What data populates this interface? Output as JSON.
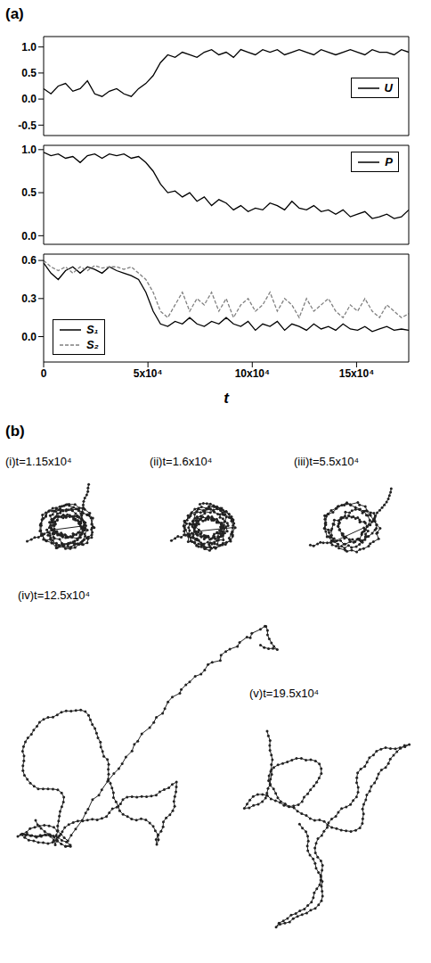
{
  "panels": [
    "(a)",
    "(b)"
  ],
  "chart_data": [
    {
      "type": "line",
      "x": [
        0,
        3500,
        7000,
        10500,
        14000,
        17500,
        21000,
        24500,
        28000,
        31500,
        35000,
        38500,
        42000,
        45500,
        49000,
        52500,
        56000,
        59500,
        63000,
        66500,
        70000,
        73500,
        77000,
        80500,
        84000,
        87500,
        91000,
        94500,
        98000,
        101500,
        105000,
        108500,
        112000,
        115500,
        119000,
        122500,
        126000,
        129500,
        133000,
        136500,
        140000,
        143500,
        147000,
        150500,
        154000,
        157500,
        161000,
        164500,
        168000,
        171500,
        175000
      ],
      "xlim": [
        0,
        175000
      ],
      "xticks": [
        0,
        {
          "value": 50000,
          "label": "5x10⁴"
        },
        {
          "value": 100000,
          "label": "10x10⁴"
        },
        {
          "value": 150000,
          "label": "15x10⁴"
        }
      ],
      "ylim": [
        -0.7,
        1.2
      ],
      "yticks": [
        -0.5,
        {
          "value": 0,
          "label": "0.0"
        },
        0.5,
        {
          "value": 1,
          "label": "1.0"
        }
      ],
      "series": [
        {
          "name": "U",
          "color": "#000000",
          "line_style": "solid",
          "values": [
            0.2,
            0.1,
            0.25,
            0.3,
            0.15,
            0.2,
            0.35,
            0.1,
            0.05,
            0.15,
            0.2,
            0.1,
            0.05,
            0.2,
            0.3,
            0.45,
            0.7,
            0.85,
            0.8,
            0.9,
            0.85,
            0.8,
            0.9,
            0.95,
            0.85,
            0.9,
            0.8,
            0.95,
            0.9,
            0.85,
            0.95,
            0.9,
            0.95,
            0.85,
            0.9,
            0.95,
            0.9,
            0.85,
            0.95,
            0.9,
            0.85,
            0.9,
            0.95,
            0.9,
            0.85,
            0.95,
            0.9,
            0.9,
            0.85,
            0.95,
            0.9
          ]
        }
      ],
      "legend": "right",
      "tick_labels": "y"
    },
    {
      "type": "line",
      "x": [
        0,
        3500,
        7000,
        10500,
        14000,
        17500,
        21000,
        24500,
        28000,
        31500,
        35000,
        38500,
        42000,
        45500,
        49000,
        52500,
        56000,
        59500,
        63000,
        66500,
        70000,
        73500,
        77000,
        80500,
        84000,
        87500,
        91000,
        94500,
        98000,
        101500,
        105000,
        108500,
        112000,
        115500,
        119000,
        122500,
        126000,
        129500,
        133000,
        136500,
        140000,
        143500,
        147000,
        150500,
        154000,
        157500,
        161000,
        164500,
        168000,
        171500,
        175000
      ],
      "xlim": [
        0,
        175000
      ],
      "xticks": [
        0,
        {
          "value": 50000,
          "label": "5x10⁴"
        },
        {
          "value": 100000,
          "label": "10x10⁴"
        },
        {
          "value": 150000,
          "label": "15x10⁴"
        }
      ],
      "ylim": [
        -0.1,
        1.05
      ],
      "yticks": [
        {
          "value": 0,
          "label": "0.0"
        },
        0.5,
        {
          "value": 1,
          "label": "1.0"
        }
      ],
      "series": [
        {
          "name": "P",
          "color": "#000000",
          "line_style": "solid",
          "values": [
            0.97,
            0.93,
            0.95,
            0.9,
            0.92,
            0.85,
            0.93,
            0.95,
            0.9,
            0.95,
            0.93,
            0.95,
            0.9,
            0.92,
            0.85,
            0.75,
            0.6,
            0.5,
            0.52,
            0.45,
            0.5,
            0.4,
            0.45,
            0.35,
            0.42,
            0.38,
            0.3,
            0.35,
            0.28,
            0.32,
            0.3,
            0.38,
            0.35,
            0.3,
            0.4,
            0.32,
            0.3,
            0.35,
            0.28,
            0.3,
            0.25,
            0.3,
            0.22,
            0.25,
            0.28,
            0.2,
            0.22,
            0.25,
            0.2,
            0.22,
            0.3
          ]
        }
      ],
      "legend": "upper right",
      "tick_labels": "y"
    },
    {
      "type": "line",
      "x": [
        0,
        3500,
        7000,
        10500,
        14000,
        17500,
        21000,
        24500,
        28000,
        31500,
        35000,
        38500,
        42000,
        45500,
        49000,
        52500,
        56000,
        59500,
        63000,
        66500,
        70000,
        73500,
        77000,
        80500,
        84000,
        87500,
        91000,
        94500,
        98000,
        101500,
        105000,
        108500,
        112000,
        115500,
        119000,
        122500,
        126000,
        129500,
        133000,
        136500,
        140000,
        143500,
        147000,
        150500,
        154000,
        157500,
        161000,
        164500,
        168000,
        171500,
        175000
      ],
      "xlim": [
        0,
        175000
      ],
      "xticks": [
        0,
        {
          "value": 50000,
          "label": "5x10⁴"
        },
        {
          "value": 100000,
          "label": "10x10⁴"
        },
        {
          "value": 150000,
          "label": "15x10⁴"
        }
      ],
      "x_label": "t",
      "ylim": [
        -0.2,
        0.65
      ],
      "yticks": [
        {
          "value": 0,
          "label": "0.0"
        },
        0.3,
        0.6
      ],
      "series": [
        {
          "name": "S₁",
          "color": "#000000",
          "line_style": "solid",
          "values": [
            0.58,
            0.5,
            0.45,
            0.52,
            0.55,
            0.5,
            0.55,
            0.53,
            0.5,
            0.55,
            0.52,
            0.5,
            0.48,
            0.45,
            0.35,
            0.2,
            0.1,
            0.08,
            0.12,
            0.1,
            0.15,
            0.1,
            0.08,
            0.12,
            0.1,
            0.15,
            0.1,
            0.08,
            0.12,
            0.05,
            0.1,
            0.08,
            0.12,
            0.05,
            0.1,
            0.08,
            0.05,
            0.1,
            0.06,
            0.08,
            0.05,
            0.1,
            0.06,
            0.05,
            0.08,
            0.04,
            0.06,
            0.08,
            0.05,
            0.06,
            0.05
          ]
        },
        {
          "name": "S₂",
          "color": "#808080",
          "line_style": "dashed",
          "values": [
            0.6,
            0.55,
            0.52,
            0.55,
            0.5,
            0.55,
            0.52,
            0.56,
            0.54,
            0.55,
            0.55,
            0.53,
            0.55,
            0.5,
            0.45,
            0.35,
            0.2,
            0.15,
            0.25,
            0.35,
            0.2,
            0.3,
            0.25,
            0.35,
            0.2,
            0.3,
            0.15,
            0.25,
            0.3,
            0.2,
            0.25,
            0.35,
            0.2,
            0.3,
            0.25,
            0.15,
            0.3,
            0.2,
            0.25,
            0.3,
            0.2,
            0.15,
            0.25,
            0.2,
            0.3,
            0.2,
            0.15,
            0.25,
            0.2,
            0.15,
            0.18
          ]
        }
      ],
      "legend": "lower left"
    }
  ],
  "snapshots": [
    "(i)t=1.15x10⁴",
    "(ii)t=1.6x10⁴",
    "(iii)t=5.5x10⁴",
    "(iv)t=12.5x10⁴",
    "(v)t=19.5x10⁴"
  ]
}
